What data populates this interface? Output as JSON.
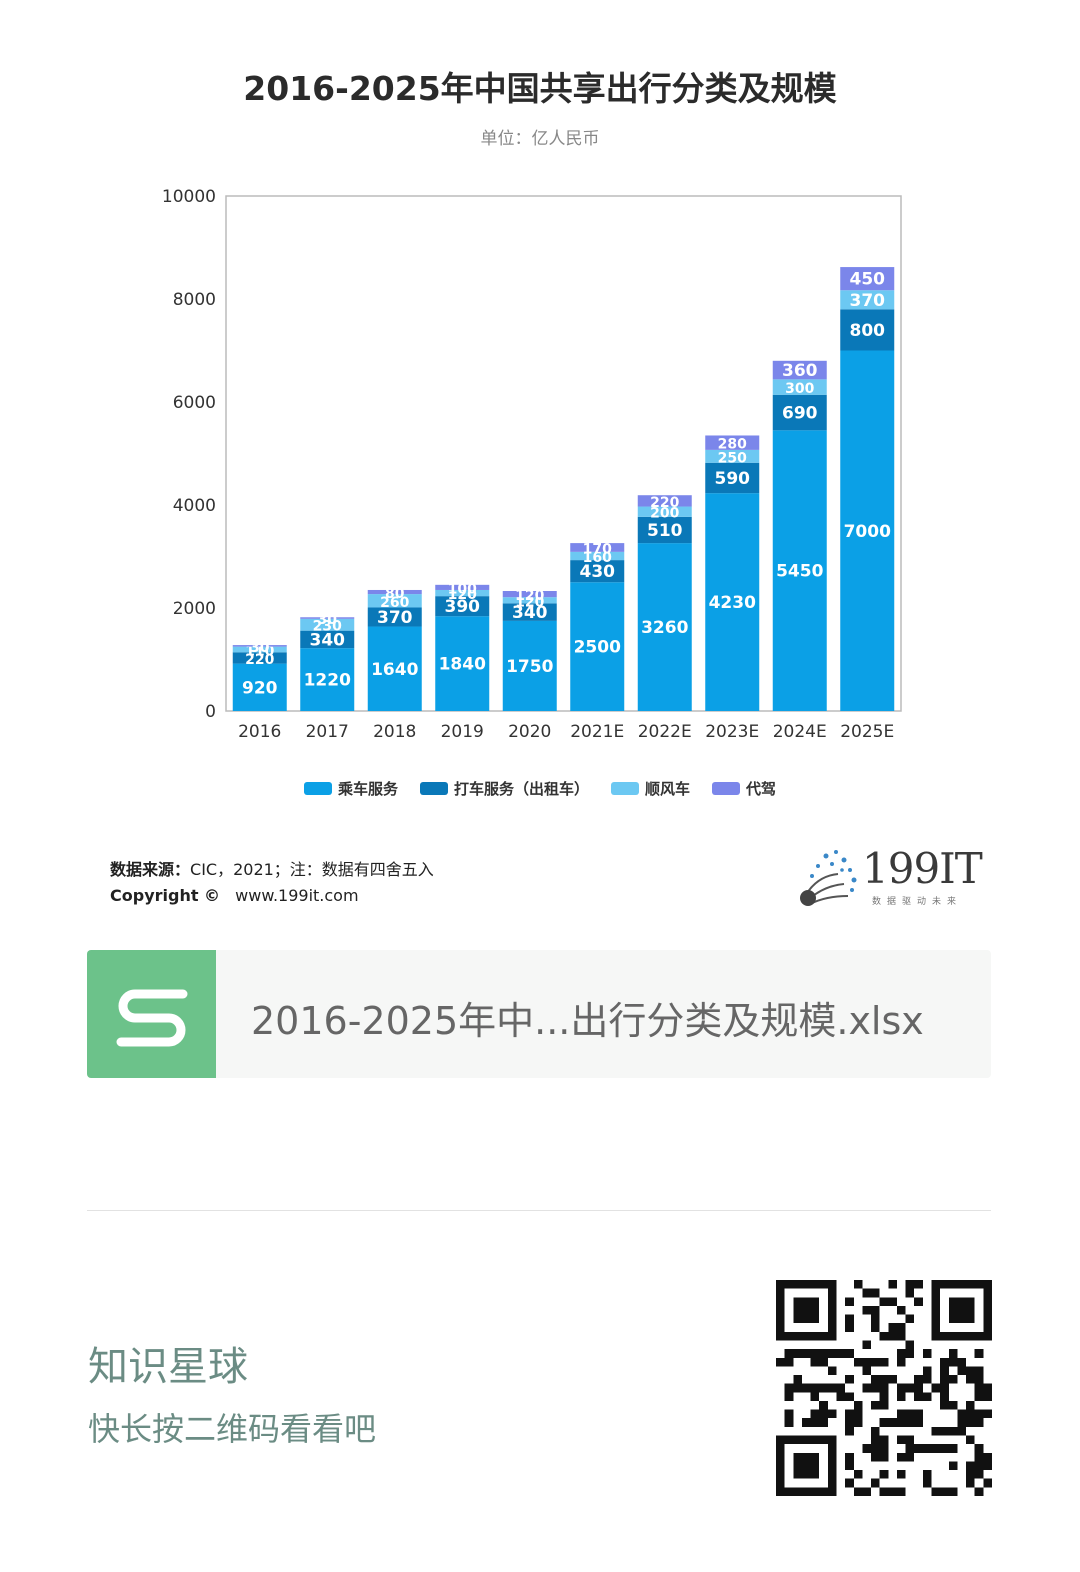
{
  "chart_data": {
    "type": "bar",
    "stacked": true,
    "title": "2016-2025年中国共享出行分类及规模",
    "subtitle": "单位：亿人民币",
    "categories": [
      "2016",
      "2017",
      "2018",
      "2019",
      "2020",
      "2021E",
      "2022E",
      "2023E",
      "2024E",
      "2025E"
    ],
    "series": [
      {
        "name": "乘车服务",
        "color": "#0ba0e6",
        "values": [
          920,
          1220,
          1640,
          1840,
          1750,
          2500,
          3260,
          4230,
          5450,
          7000
        ]
      },
      {
        "name": "打车服务（出租车）",
        "color": "#0a78b8",
        "values": [
          220,
          340,
          370,
          390,
          340,
          430,
          510,
          590,
          690,
          800
        ]
      },
      {
        "name": "顺风车",
        "color": "#6cc8f2",
        "values": [
          110,
          230,
          260,
          120,
          120,
          160,
          200,
          250,
          300,
          370
        ]
      },
      {
        "name": "代驾",
        "color": "#7b86ea",
        "values": [
          30,
          30,
          80,
          100,
          120,
          170,
          220,
          280,
          360,
          450
        ]
      }
    ],
    "ylim": [
      0,
      10000
    ],
    "yticks": [
      0,
      2000,
      4000,
      6000,
      8000,
      10000
    ],
    "legend_position": "bottom",
    "grid": false
  },
  "source": {
    "label": "数据来源：",
    "text": "CIC，2021；注：数据有四舍五入"
  },
  "copyright": {
    "label": "Copyright ©",
    "url": "www.199it.com"
  },
  "brand": {
    "name": "199IT",
    "tagline": "数据驱动未来"
  },
  "file": {
    "name": "2016-2025年中...出行分类及规模.xlsx",
    "icon": "spreadsheet-s-icon"
  },
  "footer": {
    "title": "知识星球",
    "subtitle": "快长按二维码看看吧"
  }
}
